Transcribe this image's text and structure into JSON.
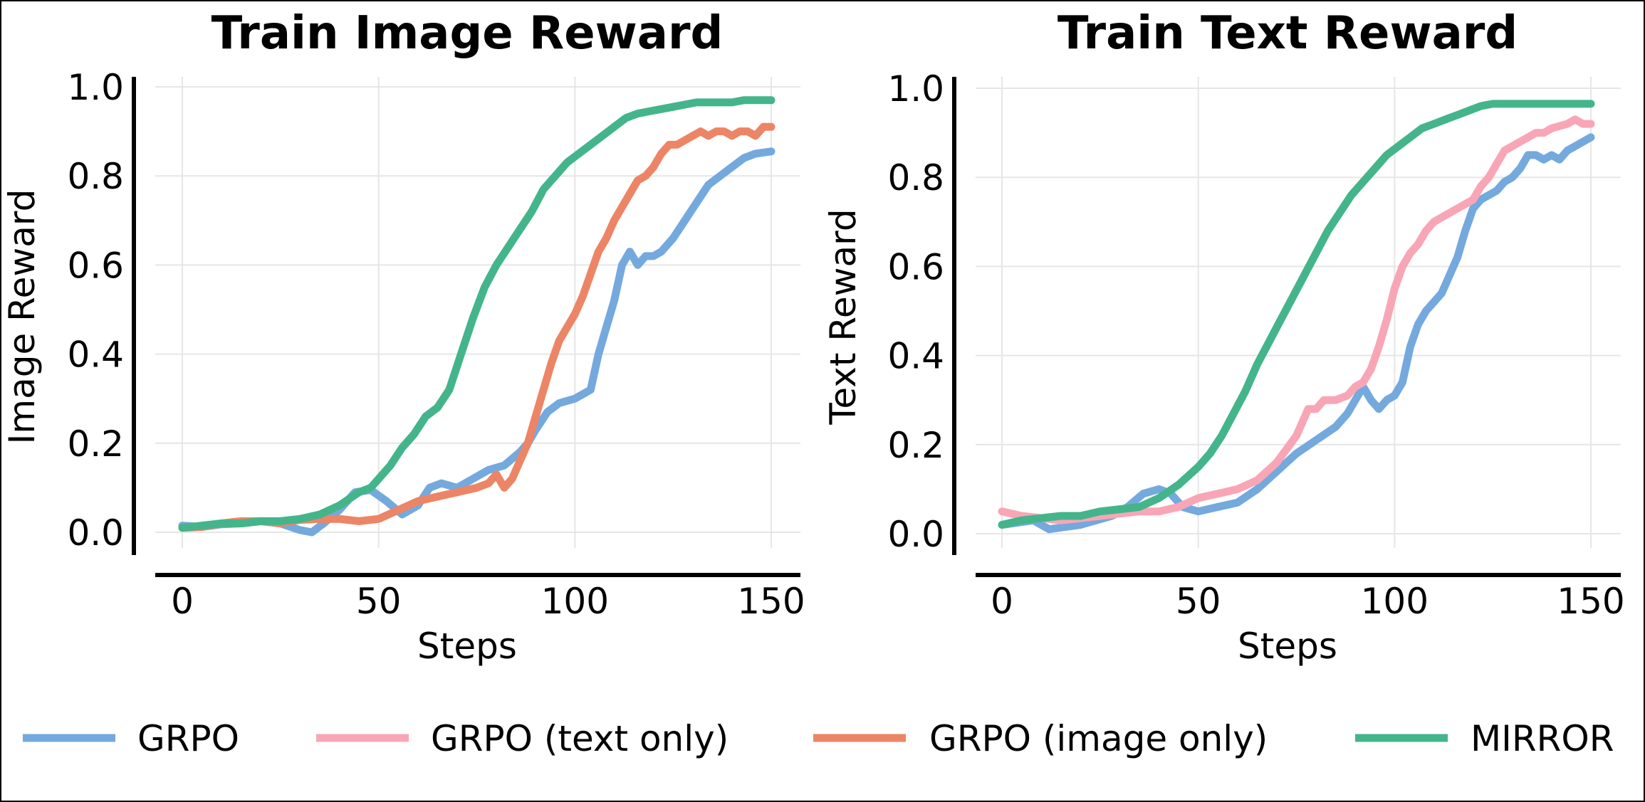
{
  "colors": {
    "GRPO": "#74a9dd",
    "GRPO (text only)": "#f8a6b6",
    "GRPO (image only)": "#ec8566",
    "MIRROR": "#44b58b"
  },
  "legend": {
    "placement": "bottom",
    "entries": [
      "GRPO",
      "GRPO (text only)",
      "GRPO (image only)",
      "MIRROR"
    ]
  },
  "chart_data": [
    {
      "type": "line",
      "title": "Train Image Reward",
      "xlabel": "Steps",
      "ylabel": "Image Reward",
      "xlim": [
        -7,
        157
      ],
      "ylim": [
        -0.05,
        1.02
      ],
      "xticks": [
        0,
        50,
        100,
        150
      ],
      "xtick_labels": [
        "0",
        "50",
        "100",
        "150"
      ],
      "yticks": [
        0.0,
        0.2,
        0.4,
        0.6,
        0.8,
        1.0
      ],
      "ytick_labels": [
        "0.0",
        "0.2",
        "0.4",
        "0.6",
        "0.8",
        "1.0"
      ],
      "grid": true,
      "series": [
        {
          "name": "GRPO",
          "x": [
            0,
            5,
            10,
            15,
            20,
            25,
            30,
            33,
            36,
            40,
            44,
            48,
            52,
            56,
            60,
            63,
            66,
            70,
            74,
            78,
            82,
            86,
            88,
            90,
            93,
            96,
            100,
            104,
            106,
            108,
            110,
            112,
            114,
            116,
            118,
            120,
            122,
            125,
            128,
            131,
            134,
            137,
            140,
            143,
            146,
            150
          ],
          "y": [
            0.015,
            0.012,
            0.018,
            0.02,
            0.025,
            0.02,
            0.005,
            0.0,
            0.02,
            0.05,
            0.09,
            0.095,
            0.07,
            0.04,
            0.06,
            0.1,
            0.11,
            0.1,
            0.12,
            0.14,
            0.15,
            0.18,
            0.2,
            0.23,
            0.27,
            0.29,
            0.3,
            0.32,
            0.4,
            0.46,
            0.52,
            0.6,
            0.63,
            0.6,
            0.62,
            0.62,
            0.63,
            0.66,
            0.7,
            0.74,
            0.78,
            0.8,
            0.82,
            0.84,
            0.85,
            0.855
          ]
        },
        {
          "name": "GRPO (image only)",
          "x": [
            0,
            5,
            10,
            15,
            20,
            25,
            30,
            35,
            40,
            45,
            50,
            55,
            60,
            65,
            70,
            75,
            78,
            80,
            82,
            84,
            86,
            88,
            90,
            92,
            94,
            96,
            98,
            100,
            102,
            104,
            106,
            108,
            110,
            112,
            114,
            116,
            118,
            120,
            122,
            124,
            126,
            128,
            130,
            132,
            134,
            136,
            138,
            140,
            142,
            144,
            146,
            148,
            150
          ],
          "y": [
            0.01,
            0.012,
            0.02,
            0.025,
            0.025,
            0.02,
            0.028,
            0.03,
            0.03,
            0.025,
            0.03,
            0.05,
            0.07,
            0.08,
            0.09,
            0.1,
            0.11,
            0.13,
            0.1,
            0.12,
            0.16,
            0.2,
            0.26,
            0.32,
            0.38,
            0.43,
            0.46,
            0.49,
            0.53,
            0.58,
            0.63,
            0.66,
            0.7,
            0.73,
            0.76,
            0.79,
            0.8,
            0.82,
            0.85,
            0.87,
            0.87,
            0.88,
            0.89,
            0.9,
            0.89,
            0.9,
            0.9,
            0.89,
            0.9,
            0.9,
            0.89,
            0.91,
            0.91
          ]
        },
        {
          "name": "MIRROR",
          "x": [
            0,
            5,
            10,
            15,
            20,
            25,
            30,
            35,
            40,
            45,
            48,
            50,
            53,
            56,
            59,
            62,
            65,
            68,
            71,
            74,
            77,
            80,
            83,
            86,
            89,
            92,
            95,
            98,
            101,
            104,
            107,
            110,
            113,
            116,
            119,
            122,
            125,
            128,
            131,
            134,
            137,
            140,
            143,
            146,
            150
          ],
          "y": [
            0.01,
            0.015,
            0.02,
            0.02,
            0.025,
            0.025,
            0.03,
            0.04,
            0.06,
            0.09,
            0.1,
            0.12,
            0.15,
            0.19,
            0.22,
            0.26,
            0.28,
            0.32,
            0.4,
            0.48,
            0.55,
            0.6,
            0.64,
            0.68,
            0.72,
            0.77,
            0.8,
            0.83,
            0.85,
            0.87,
            0.89,
            0.91,
            0.93,
            0.94,
            0.945,
            0.95,
            0.955,
            0.96,
            0.965,
            0.965,
            0.965,
            0.965,
            0.97,
            0.97,
            0.97
          ]
        }
      ]
    },
    {
      "type": "line",
      "title": "Train Text Reward",
      "xlabel": "Steps",
      "ylabel": "Text Reward",
      "xlim": [
        -7,
        157
      ],
      "ylim": [
        -0.05,
        1.02
      ],
      "xticks": [
        0,
        50,
        100,
        150
      ],
      "xtick_labels": [
        "0",
        "50",
        "100",
        "150"
      ],
      "yticks": [
        0.0,
        0.2,
        0.4,
        0.6,
        0.8,
        1.0
      ],
      "ytick_labels": [
        "0.0",
        "0.2",
        "0.4",
        "0.6",
        "0.8",
        "1.0"
      ],
      "grid": true,
      "series": [
        {
          "name": "GRPO",
          "x": [
            0,
            4,
            8,
            12,
            16,
            20,
            24,
            28,
            32,
            36,
            40,
            43,
            46,
            50,
            55,
            60,
            65,
            70,
            75,
            80,
            85,
            88,
            92,
            94,
            96,
            98,
            100,
            102,
            104,
            106,
            108,
            110,
            112,
            114,
            116,
            118,
            120,
            122,
            124,
            126,
            128,
            130,
            132,
            134,
            136,
            138,
            140,
            142,
            144,
            146,
            148,
            150
          ],
          "y": [
            0.02,
            0.025,
            0.03,
            0.01,
            0.015,
            0.02,
            0.03,
            0.04,
            0.06,
            0.09,
            0.1,
            0.09,
            0.06,
            0.05,
            0.06,
            0.07,
            0.1,
            0.14,
            0.18,
            0.21,
            0.24,
            0.27,
            0.33,
            0.3,
            0.28,
            0.3,
            0.31,
            0.34,
            0.42,
            0.47,
            0.5,
            0.52,
            0.54,
            0.58,
            0.62,
            0.68,
            0.73,
            0.75,
            0.76,
            0.77,
            0.79,
            0.8,
            0.82,
            0.85,
            0.85,
            0.84,
            0.85,
            0.84,
            0.86,
            0.87,
            0.88,
            0.89
          ]
        },
        {
          "name": "GRPO (text only)",
          "x": [
            0,
            5,
            10,
            15,
            20,
            25,
            30,
            35,
            40,
            45,
            50,
            55,
            60,
            65,
            70,
            75,
            78,
            80,
            82,
            85,
            88,
            90,
            92,
            94,
            96,
            98,
            100,
            102,
            104,
            106,
            108,
            110,
            112,
            114,
            116,
            118,
            120,
            122,
            124,
            126,
            128,
            130,
            132,
            134,
            136,
            138,
            140,
            142,
            144,
            146,
            148,
            150
          ],
          "y": [
            0.05,
            0.04,
            0.035,
            0.03,
            0.035,
            0.04,
            0.045,
            0.05,
            0.05,
            0.06,
            0.08,
            0.09,
            0.1,
            0.12,
            0.16,
            0.22,
            0.28,
            0.28,
            0.3,
            0.3,
            0.31,
            0.33,
            0.34,
            0.37,
            0.42,
            0.48,
            0.55,
            0.6,
            0.63,
            0.65,
            0.68,
            0.7,
            0.71,
            0.72,
            0.73,
            0.74,
            0.75,
            0.78,
            0.8,
            0.83,
            0.86,
            0.87,
            0.88,
            0.89,
            0.9,
            0.9,
            0.91,
            0.915,
            0.92,
            0.93,
            0.92,
            0.92
          ]
        },
        {
          "name": "MIRROR",
          "x": [
            0,
            5,
            10,
            15,
            20,
            25,
            30,
            35,
            40,
            45,
            50,
            53,
            56,
            59,
            62,
            65,
            68,
            71,
            74,
            77,
            80,
            83,
            86,
            89,
            92,
            95,
            98,
            101,
            104,
            107,
            110,
            113,
            116,
            119,
            122,
            125,
            128,
            131,
            134,
            137,
            140,
            143,
            146,
            150
          ],
          "y": [
            0.02,
            0.03,
            0.035,
            0.04,
            0.04,
            0.05,
            0.055,
            0.06,
            0.08,
            0.11,
            0.15,
            0.18,
            0.22,
            0.27,
            0.32,
            0.38,
            0.43,
            0.48,
            0.53,
            0.58,
            0.63,
            0.68,
            0.72,
            0.76,
            0.79,
            0.82,
            0.85,
            0.87,
            0.89,
            0.91,
            0.92,
            0.93,
            0.94,
            0.95,
            0.96,
            0.965,
            0.965,
            0.965,
            0.965,
            0.965,
            0.965,
            0.965,
            0.965,
            0.965
          ]
        }
      ]
    }
  ]
}
